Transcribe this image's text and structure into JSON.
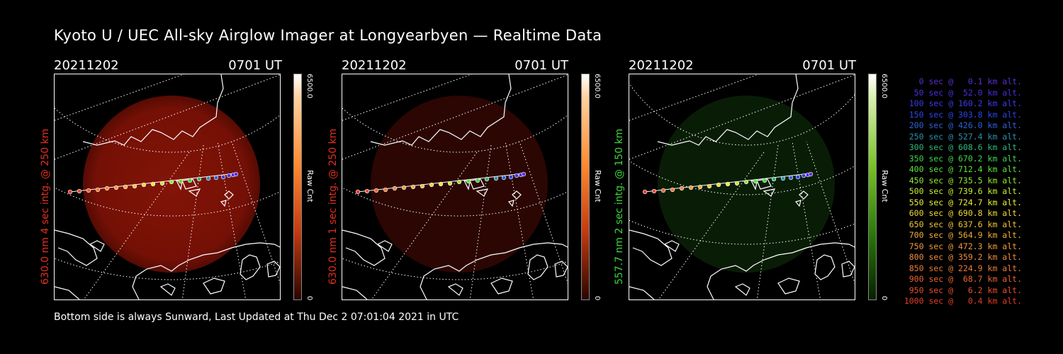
{
  "title": "Kyoto U / UEC All-sky Airglow Imager at Longyearbyen — Realtime Data",
  "footer": "Bottom side is always Sunward, Last Updated at Thu Dec  2 07:01:04 2021 in UTC",
  "colors": {
    "red": "#e0301e",
    "green": "#3bd63b",
    "white": "#ffffff"
  },
  "panels": [
    {
      "date": "20211202",
      "time": "0701 UT",
      "ylabel": "630.0 nm 4 sec intg. @ 250 km",
      "label_color": "#e0301e",
      "cbar_max": "6500.0",
      "cbar_label": "Raw Cnt",
      "cbar_min": "0",
      "cbar_colormap": "red-hot",
      "glow_intensity": 0.55
    },
    {
      "date": "20211202",
      "time": "0701 UT",
      "ylabel": "630.0 nm 1 sec intg. @ 250 km",
      "label_color": "#e0301e",
      "cbar_max": "6500.0",
      "cbar_label": "Raw Cnt",
      "cbar_min": "0",
      "cbar_colormap": "red-hot",
      "glow_intensity": 0.22
    },
    {
      "date": "20211202",
      "time": "0701 UT",
      "ylabel": "557.7 nm 2 sec intg. @ 150 km",
      "label_color": "#3bd63b",
      "cbar_max": "6500.0",
      "cbar_label": "Raw Cnt",
      "cbar_min": "0",
      "cbar_colormap": "green",
      "glow_intensity": 0.15
    }
  ],
  "legend": [
    {
      "text": "0 sec @   0.1 km alt.",
      "color": "#5a2fd0"
    },
    {
      "text": "50 sec @  52.0 km alt.",
      "color": "#4a2ee0"
    },
    {
      "text": "100 sec @ 160.2 km alt.",
      "color": "#3a3ae8"
    },
    {
      "text": "150 sec @ 303.8 km alt.",
      "color": "#2b45e8"
    },
    {
      "text": "200 sec @ 426.0 km alt.",
      "color": "#2a62d8"
    },
    {
      "text": "250 sec @ 527.4 km alt.",
      "color": "#2b8fb0"
    },
    {
      "text": "300 sec @ 608.6 km alt.",
      "color": "#2fb87c"
    },
    {
      "text": "350 sec @ 670.2 km alt.",
      "color": "#3fd64a"
    },
    {
      "text": "400 sec @ 712.4 km alt.",
      "color": "#5be238"
    },
    {
      "text": "450 sec @ 735.5 km alt.",
      "color": "#93e834"
    },
    {
      "text": "500 sec @ 739.6 km alt.",
      "color": "#c6ec34"
    },
    {
      "text": "550 sec @ 724.7 km alt.",
      "color": "#eded3a"
    },
    {
      "text": "600 sec @ 690.8 km alt.",
      "color": "#f2d83a"
    },
    {
      "text": "650 sec @ 637.6 km alt.",
      "color": "#f2c23a"
    },
    {
      "text": "700 sec @ 564.9 km alt.",
      "color": "#f2ab3a"
    },
    {
      "text": "750 sec @ 472.3 km alt.",
      "color": "#f29a3a"
    },
    {
      "text": "800 sec @ 359.2 km alt.",
      "color": "#f08a3a"
    },
    {
      "text": "850 sec @ 224.9 km alt.",
      "color": "#ee7a36"
    },
    {
      "text": "900 sec @  68.7 km alt.",
      "color": "#ec6430"
    },
    {
      "text": "950 sec @   6.2 km alt.",
      "color": "#e8502c"
    },
    {
      "text": "1000 sec @   0.4 km alt.",
      "color": "#e43c26"
    }
  ]
}
